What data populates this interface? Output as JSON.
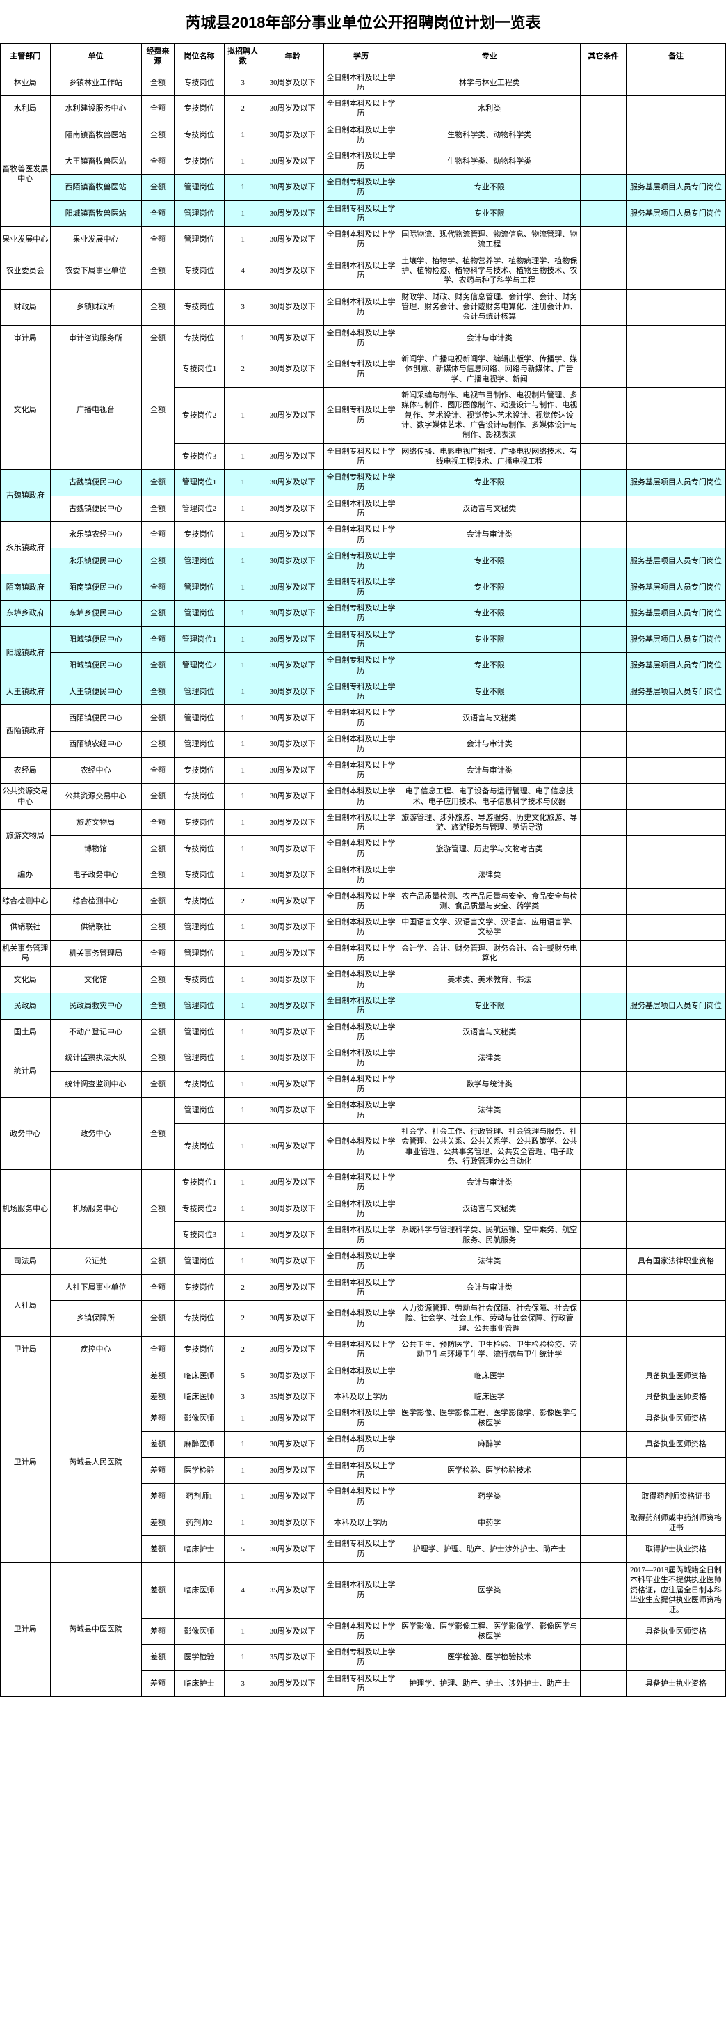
{
  "title": "芮城县2018年部分事业单位公开招聘岗位计划一览表",
  "headers": [
    "主管部门",
    "单位",
    "经费来源",
    "岗位名称",
    "拟招聘人数",
    "年龄",
    "学历",
    "专业",
    "其它条件",
    "备注"
  ],
  "rows": [
    {
      "dept": "林业局",
      "deptSpan": 1,
      "unit": "乡镇林业工作站",
      "src": "全额",
      "post": "专技岗位",
      "num": "3",
      "age": "30周岁及以下",
      "edu": "全日制本科及以上学历",
      "major": "林学与林业工程类",
      "other": "",
      "note": ""
    },
    {
      "dept": "水利局",
      "deptSpan": 1,
      "unit": "水利建设服务中心",
      "src": "全额",
      "post": "专技岗位",
      "num": "2",
      "age": "30周岁及以下",
      "edu": "全日制本科及以上学历",
      "major": "水利类",
      "other": "",
      "note": ""
    },
    {
      "dept": "畜牧兽医发展中心",
      "deptSpan": 4,
      "unit": "陌南镇畜牧兽医站",
      "src": "全额",
      "post": "专技岗位",
      "num": "1",
      "age": "30周岁及以下",
      "edu": "全日制本科及以上学历",
      "major": "生物科学类、动物科学类",
      "other": "",
      "note": ""
    },
    {
      "unit": "大王镇畜牧兽医站",
      "src": "全额",
      "post": "专技岗位",
      "num": "1",
      "age": "30周岁及以下",
      "edu": "全日制本科及以上学历",
      "major": "生物科学类、动物科学类",
      "other": "",
      "note": ""
    },
    {
      "unit": "西陌镇畜牧兽医站",
      "src": "全额",
      "post": "管理岗位",
      "num": "1",
      "age": "30周岁及以下",
      "edu": "全日制专科及以上学历",
      "major": "专业不限",
      "other": "",
      "note": "服务基层项目人员专门岗位",
      "hl": true
    },
    {
      "unit": "阳城镇畜牧兽医站",
      "src": "全额",
      "post": "管理岗位",
      "num": "1",
      "age": "30周岁及以下",
      "edu": "全日制专科及以上学历",
      "major": "专业不限",
      "other": "",
      "note": "服务基层项目人员专门岗位",
      "hl": true
    },
    {
      "dept": "果业发展中心",
      "deptSpan": 1,
      "unit": "果业发展中心",
      "src": "全额",
      "post": "管理岗位",
      "num": "1",
      "age": "30周岁及以下",
      "edu": "全日制本科及以上学历",
      "major": "国际物流、现代物流管理、物流信息、物流管理、物流工程",
      "other": "",
      "note": ""
    },
    {
      "dept": "农业委员会",
      "deptSpan": 1,
      "unit": "农委下属事业单位",
      "src": "全额",
      "post": "专技岗位",
      "num": "4",
      "age": "30周岁及以下",
      "edu": "全日制本科及以上学历",
      "major": "土壤学、植物学、植物营养学、植物病理学、植物保护、植物检疫、植物科学与技术、植物生物技术、农学、农药与种子科学与工程",
      "other": "",
      "note": ""
    },
    {
      "dept": "财政局",
      "deptSpan": 1,
      "unit": "乡镇财政所",
      "src": "全额",
      "post": "专技岗位",
      "num": "3",
      "age": "30周岁及以下",
      "edu": "全日制本科及以上学历",
      "major": "财政学、财政、财务信息管理、会计学、会计、财务管理、财务会计、会计或财务电算化、注册会计师、会计与统计核算",
      "other": "",
      "note": ""
    },
    {
      "dept": "审计局",
      "deptSpan": 1,
      "unit": "审计咨询服务所",
      "src": "全额",
      "post": "专技岗位",
      "num": "1",
      "age": "30周岁及以下",
      "edu": "全日制本科及以上学历",
      "major": "会计与审计类",
      "other": "",
      "note": ""
    },
    {
      "dept": "文化局",
      "deptSpan": 3,
      "unit": "广播电视台",
      "unitSpan": 3,
      "src": "全额",
      "srcSpan": 3,
      "post": "专技岗位1",
      "num": "2",
      "age": "30周岁及以下",
      "edu": "全日制专科及以上学历",
      "major": "新闻学、广播电视新闻学、编辑出版学、传播学、媒体创意、新媒体与信息网络、网络与新媒体、广告学、广播电视学、新闻",
      "other": "",
      "note": ""
    },
    {
      "post": "专技岗位2",
      "num": "1",
      "age": "30周岁及以下",
      "edu": "全日制专科及以上学历",
      "major": "新闻采编与制作、电视节目制作、电视制片管理、多媒体与制作、图形图像制作、动漫设计与制作、电视制作、艺术设计、视觉传达艺术设计、视觉传达设计、数字媒体艺术、广告设计与制作、多媒体设计与制作、影视表演",
      "other": "",
      "note": ""
    },
    {
      "post": "专技岗位3",
      "num": "1",
      "age": "30周岁及以下",
      "edu": "全日制专科及以上学历",
      "major": "网络传播、电影电视广播技、广播电视网络技术、有线电视工程技术、广播电视工程",
      "other": "",
      "note": ""
    },
    {
      "dept": "古魏镇政府",
      "deptSpan": 2,
      "unit": "古魏镇便民中心",
      "src": "全额",
      "post": "管理岗位1",
      "num": "1",
      "age": "30周岁及以下",
      "edu": "全日制专科及以上学历",
      "major": "专业不限",
      "other": "",
      "note": "服务基层项目人员专门岗位",
      "hl": true
    },
    {
      "unit": "古魏镇便民中心",
      "src": "全额",
      "post": "管理岗位2",
      "num": "1",
      "age": "30周岁及以下",
      "edu": "全日制本科及以上学历",
      "major": "汉语言与文秘类",
      "other": "",
      "note": ""
    },
    {
      "dept": "永乐镇政府",
      "deptSpan": 2,
      "unit": "永乐镇农经中心",
      "src": "全额",
      "post": "专技岗位",
      "num": "1",
      "age": "30周岁及以下",
      "edu": "全日制本科及以上学历",
      "major": "会计与审计类",
      "other": "",
      "note": ""
    },
    {
      "unit": "永乐镇便民中心",
      "src": "全额",
      "post": "管理岗位",
      "num": "1",
      "age": "30周岁及以下",
      "edu": "全日制专科及以上学历",
      "major": "专业不限",
      "other": "",
      "note": "服务基层项目人员专门岗位",
      "hl": true
    },
    {
      "dept": "陌南镇政府",
      "deptSpan": 1,
      "unit": "陌南镇便民中心",
      "src": "全额",
      "post": "管理岗位",
      "num": "1",
      "age": "30周岁及以下",
      "edu": "全日制专科及以上学历",
      "major": "专业不限",
      "other": "",
      "note": "服务基层项目人员专门岗位",
      "hl": true
    },
    {
      "dept": "东垆乡政府",
      "deptSpan": 1,
      "unit": "东垆乡便民中心",
      "src": "全额",
      "post": "管理岗位",
      "num": "1",
      "age": "30周岁及以下",
      "edu": "全日制专科及以上学历",
      "major": "专业不限",
      "other": "",
      "note": "服务基层项目人员专门岗位",
      "hl": true
    },
    {
      "dept": "阳城镇政府",
      "deptSpan": 2,
      "unit": "阳城镇便民中心",
      "src": "全额",
      "post": "管理岗位1",
      "num": "1",
      "age": "30周岁及以下",
      "edu": "全日制专科及以上学历",
      "major": "专业不限",
      "other": "",
      "note": "服务基层项目人员专门岗位",
      "hl": true
    },
    {
      "unit": "阳城镇便民中心",
      "src": "全额",
      "post": "管理岗位2",
      "num": "1",
      "age": "30周岁及以下",
      "edu": "全日制专科及以上学历",
      "major": "专业不限",
      "other": "",
      "note": "服务基层项目人员专门岗位",
      "hl": true
    },
    {
      "dept": "大王镇政府",
      "deptSpan": 1,
      "unit": "大王镇便民中心",
      "src": "全额",
      "post": "管理岗位",
      "num": "1",
      "age": "30周岁及以下",
      "edu": "全日制专科及以上学历",
      "major": "专业不限",
      "other": "",
      "note": "服务基层项目人员专门岗位",
      "hl": true
    },
    {
      "dept": "西陌镇政府",
      "deptSpan": 2,
      "unit": "西陌镇便民中心",
      "src": "全额",
      "post": "管理岗位",
      "num": "1",
      "age": "30周岁及以下",
      "edu": "全日制本科及以上学历",
      "major": "汉语言与文秘类",
      "other": "",
      "note": ""
    },
    {
      "unit": "西陌镇农经中心",
      "src": "全额",
      "post": "管理岗位",
      "num": "1",
      "age": "30周岁及以下",
      "edu": "全日制本科及以上学历",
      "major": "会计与审计类",
      "other": "",
      "note": ""
    },
    {
      "dept": "农经局",
      "deptSpan": 1,
      "unit": "农经中心",
      "src": "全额",
      "post": "专技岗位",
      "num": "1",
      "age": "30周岁及以下",
      "edu": "全日制本科及以上学历",
      "major": "会计与审计类",
      "other": "",
      "note": ""
    },
    {
      "dept": "公共资源交易中心",
      "deptSpan": 1,
      "unit": "公共资源交易中心",
      "src": "全额",
      "post": "专技岗位",
      "num": "1",
      "age": "30周岁及以下",
      "edu": "全日制本科及以上学历",
      "major": "电子信息工程、电子设备与运行管理、电子信息技术、电子应用技术、电子信息科学技术与仪器",
      "other": "",
      "note": ""
    },
    {
      "dept": "旅游文物局",
      "deptSpan": 2,
      "unit": "旅游文物局",
      "src": "全额",
      "post": "专技岗位",
      "num": "1",
      "age": "30周岁及以下",
      "edu": "全日制本科及以上学历",
      "major": "旅游管理、涉外旅游、导游服务、历史文化旅游、导游、旅游服务与管理、英语导游",
      "other": "",
      "note": ""
    },
    {
      "unit": "博物馆",
      "src": "全额",
      "post": "专技岗位",
      "num": "1",
      "age": "30周岁及以下",
      "edu": "全日制本科及以上学历",
      "major": "旅游管理、历史学与文物考古类",
      "other": "",
      "note": ""
    },
    {
      "dept": "编办",
      "deptSpan": 1,
      "unit": "电子政务中心",
      "src": "全额",
      "post": "专技岗位",
      "num": "1",
      "age": "30周岁及以下",
      "edu": "全日制本科及以上学历",
      "major": "法律类",
      "other": "",
      "note": ""
    },
    {
      "dept": "综合检测中心",
      "deptSpan": 1,
      "unit": "综合检测中心",
      "src": "全额",
      "post": "专技岗位",
      "num": "2",
      "age": "30周岁及以下",
      "edu": "全日制本科及以上学历",
      "major": "农产品质量检测、农产品质量与安全、食品安全与检测、食品质量与安全、药学类",
      "other": "",
      "note": ""
    },
    {
      "dept": "供销联社",
      "deptSpan": 1,
      "unit": "供销联社",
      "src": "全额",
      "post": "管理岗位",
      "num": "1",
      "age": "30周岁及以下",
      "edu": "全日制本科及以上学历",
      "major": "中国语言文学、汉语言文学、汉语言、应用语言学、文秘学",
      "other": "",
      "note": ""
    },
    {
      "dept": "机关事务管理局",
      "deptSpan": 1,
      "unit": "机关事务管理局",
      "src": "全额",
      "post": "管理岗位",
      "num": "1",
      "age": "30周岁及以下",
      "edu": "全日制本科及以上学历",
      "major": "会计学、会计、财务管理、财务会计、会计或财务电算化",
      "other": "",
      "note": ""
    },
    {
      "dept": "文化局",
      "deptSpan": 1,
      "unit": "文化馆",
      "src": "全额",
      "post": "专技岗位",
      "num": "1",
      "age": "30周岁及以下",
      "edu": "全日制本科及以上学历",
      "major": "美术类、美术教育、书法",
      "other": "",
      "note": ""
    },
    {
      "dept": "民政局",
      "deptSpan": 1,
      "unit": "民政局救灾中心",
      "src": "全额",
      "post": "管理岗位",
      "num": "1",
      "age": "30周岁及以下",
      "edu": "全日制本科及以上学历",
      "major": "专业不限",
      "other": "",
      "note": "服务基层项目人员专门岗位",
      "hl": true
    },
    {
      "dept": "国土局",
      "deptSpan": 1,
      "unit": "不动产登记中心",
      "src": "全额",
      "post": "管理岗位",
      "num": "1",
      "age": "30周岁及以下",
      "edu": "全日制本科及以上学历",
      "major": "汉语言与文秘类",
      "other": "",
      "note": ""
    },
    {
      "dept": "统计局",
      "deptSpan": 2,
      "unit": "统计监察执法大队",
      "src": "全额",
      "post": "管理岗位",
      "num": "1",
      "age": "30周岁及以下",
      "edu": "全日制本科及以上学历",
      "major": "法律类",
      "other": "",
      "note": ""
    },
    {
      "unit": "统计调查监测中心",
      "src": "全额",
      "post": "专技岗位",
      "num": "1",
      "age": "30周岁及以下",
      "edu": "全日制本科及以上学历",
      "major": "数学与统计类",
      "other": "",
      "note": ""
    },
    {
      "dept": "政务中心",
      "deptSpan": 2,
      "unit": "政务中心",
      "unitSpan": 2,
      "src": "全额",
      "srcSpan": 2,
      "post": "管理岗位",
      "num": "1",
      "age": "30周岁及以下",
      "edu": "全日制本科及以上学历",
      "major": "法律类",
      "other": "",
      "note": ""
    },
    {
      "post": "专技岗位",
      "num": "1",
      "age": "30周岁及以下",
      "edu": "全日制本科及以上学历",
      "major": "社会学、社会工作、行政管理、社会管理与服务、社会管理、公共关系、公共关系学、公共政策学、公共事业管理、公共事务管理、公共安全管理、电子政务、行政管理办公自动化",
      "other": "",
      "note": ""
    },
    {
      "dept": "机场服务中心",
      "deptSpan": 3,
      "unit": "机场服务中心",
      "unitSpan": 3,
      "src": "全额",
      "srcSpan": 3,
      "post": "专技岗位1",
      "num": "1",
      "age": "30周岁及以下",
      "edu": "全日制本科及以上学历",
      "major": "会计与审计类",
      "other": "",
      "note": ""
    },
    {
      "post": "专技岗位2",
      "num": "1",
      "age": "30周岁及以下",
      "edu": "全日制本科及以上学历",
      "major": "汉语言与文秘类",
      "other": "",
      "note": ""
    },
    {
      "post": "专技岗位3",
      "num": "1",
      "age": "30周岁及以下",
      "edu": "全日制本科及以上学历",
      "major": "系统科学与管理科学类、民航运输、空中乘务、航空服务、民航服务",
      "other": "",
      "note": ""
    },
    {
      "dept": "司法局",
      "deptSpan": 1,
      "unit": "公证处",
      "src": "全额",
      "post": "管理岗位",
      "num": "1",
      "age": "30周岁及以下",
      "edu": "全日制本科及以上学历",
      "major": "法律类",
      "other": "",
      "note": "具有国家法律职业资格"
    },
    {
      "dept": "人社局",
      "deptSpan": 2,
      "unit": "人社下属事业单位",
      "src": "全额",
      "post": "专技岗位",
      "num": "2",
      "age": "30周岁及以下",
      "edu": "全日制本科及以上学历",
      "major": "会计与审计类",
      "other": "",
      "note": ""
    },
    {
      "unit": "乡镇保障所",
      "src": "全额",
      "post": "专技岗位",
      "num": "2",
      "age": "30周岁及以下",
      "edu": "全日制本科及以上学历",
      "major": "人力资源管理、劳动与社会保障、社会保障、社会保险、社会学、社会工作、劳动与社会保障、行政管理、公共事业管理",
      "other": "",
      "note": ""
    },
    {
      "dept": "卫计局",
      "deptSpan": 1,
      "unit": "疾控中心",
      "src": "全额",
      "post": "专技岗位",
      "num": "2",
      "age": "30周岁及以下",
      "edu": "全日制本科及以上学历",
      "major": "公共卫生、预防医学、卫生检验、卫生检验检疫、劳动卫生与环境卫生学、流行病与卫生统计学",
      "other": "",
      "note": ""
    },
    {
      "dept": "卫计局",
      "deptSpan": 8,
      "unit": "芮城县人民医院",
      "unitSpan": 8,
      "src": "差额",
      "post": "临床医师",
      "num": "5",
      "age": "30周岁及以下",
      "edu": "全日制本科及以上学历",
      "major": "临床医学",
      "other": "",
      "note": "具备执业医师资格"
    },
    {
      "src": "差额",
      "post": "临床医师",
      "num": "3",
      "age": "35周岁及以下",
      "edu": "本科及以上学历",
      "major": "临床医学",
      "other": "",
      "note": "具备执业医师资格"
    },
    {
      "src": "差额",
      "post": "影像医师",
      "num": "1",
      "age": "30周岁及以下",
      "edu": "全日制本科及以上学历",
      "major": "医学影像、医学影像工程、医学影像学、影像医学与核医学",
      "other": "",
      "note": "具备执业医师资格"
    },
    {
      "src": "差额",
      "post": "麻醉医师",
      "num": "1",
      "age": "30周岁及以下",
      "edu": "全日制本科及以上学历",
      "major": "麻醉学",
      "other": "",
      "note": "具备执业医师资格"
    },
    {
      "src": "差额",
      "post": "医学检验",
      "num": "1",
      "age": "30周岁及以下",
      "edu": "全日制本科及以上学历",
      "major": "医学检验、医学检验技术",
      "other": "",
      "note": ""
    },
    {
      "src": "差额",
      "post": "药剂师1",
      "num": "1",
      "age": "30周岁及以下",
      "edu": "全日制本科及以上学历",
      "major": "药学类",
      "other": "",
      "note": "取得药剂师资格证书"
    },
    {
      "src": "差额",
      "post": "药剂师2",
      "num": "1",
      "age": "30周岁及以下",
      "edu": "本科及以上学历",
      "major": "中药学",
      "other": "",
      "note": "取得药剂师或中药剂师资格证书"
    },
    {
      "src": "差额",
      "post": "临床护士",
      "num": "5",
      "age": "30周岁及以下",
      "edu": "全日制专科及以上学历",
      "major": "护理学、护理、助产、护士涉外护士、助产士",
      "other": "",
      "note": "取得护士执业资格"
    },
    {
      "dept": "卫计局",
      "deptSpan": 5,
      "unit": "芮城县中医医院",
      "unitSpan": 5,
      "src": "差额",
      "post": "临床医师",
      "num": "4",
      "age": "35周岁及以下",
      "edu": "全日制本科及以上学历",
      "major": "医学类",
      "other": "",
      "note": "2017—2018届芮城籍全日制本科毕业生不提供执业医师资格证，应往届全日制本科毕业生应提供执业医师资格证。"
    },
    {
      "src": "差额",
      "post": "影像医师",
      "num": "1",
      "age": "30周岁及以下",
      "edu": "全日制本科及以上学历",
      "major": "医学影像、医学影像工程、医学影像学、影像医学与核医学",
      "other": "",
      "note": "具备执业医师资格"
    },
    {
      "src": "差额",
      "post": "医学检验",
      "num": "1",
      "age": "35周岁及以下",
      "edu": "全日制专科及以上学历",
      "major": "医学检验、医学检验技术",
      "other": "",
      "note": ""
    },
    {
      "src": "差额",
      "post": "临床护士",
      "num": "3",
      "age": "30周岁及以下",
      "edu": "全日制专科及以上学历",
      "major": "护理学、护理、助产、护士、涉外护士、助产士",
      "other": "",
      "note": "具备护士执业资格"
    }
  ]
}
